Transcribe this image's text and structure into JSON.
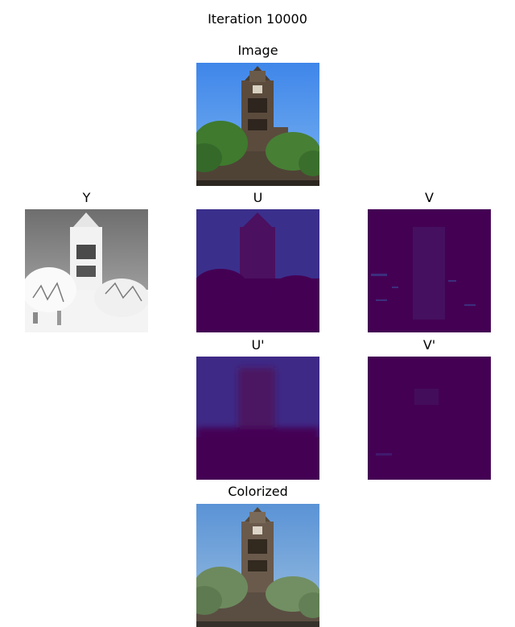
{
  "figure": {
    "title": "Iteration 10000"
  },
  "panels": {
    "image": {
      "title": "Image"
    },
    "y": {
      "title": "Y"
    },
    "u": {
      "title": "U"
    },
    "v": {
      "title": "V"
    },
    "u_pred": {
      "title": "U'"
    },
    "v_pred": {
      "title": "V'"
    },
    "colorized": {
      "title": "Colorized"
    }
  },
  "colors": {
    "sky_blue": "#4a90e8",
    "viridis_dark": "#440154",
    "viridis_indigo": "#3b2f8c",
    "foliage_green": "#3f7a2e",
    "stone_brown": "#5a4a3c"
  }
}
